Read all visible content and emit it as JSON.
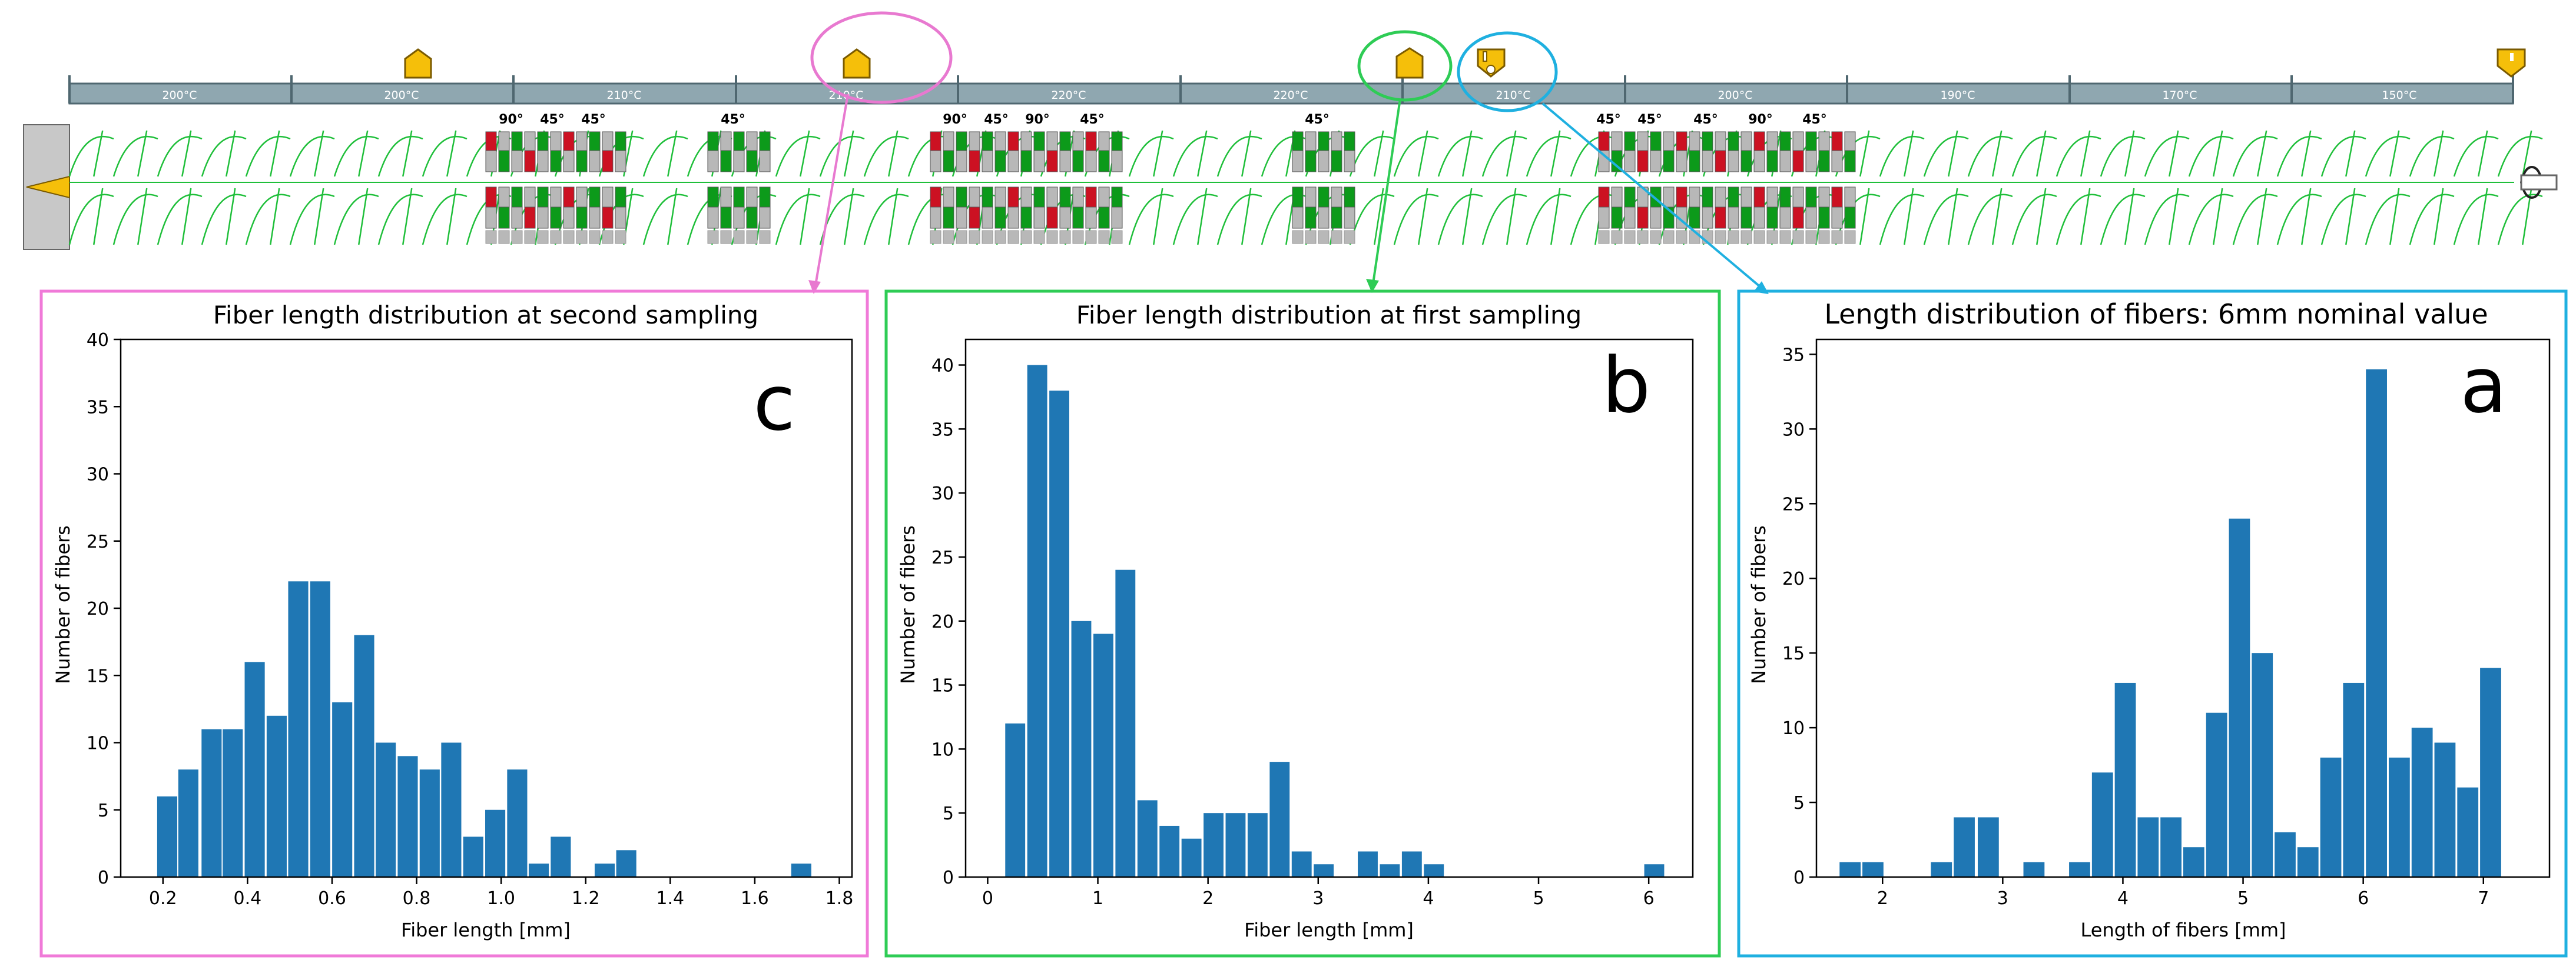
{
  "figure": {
    "barrel": {
      "zones": [
        "200°C",
        "200°C",
        "210°C",
        "210°C",
        "220°C",
        "220°C",
        "210°C",
        "200°C",
        "190°C",
        "170°C",
        "150°C"
      ],
      "kneading_blocks": [
        {
          "angles": [
            "90°",
            "45°",
            "45°"
          ]
        },
        {
          "angles": [
            "45°"
          ]
        },
        {
          "angles": [
            "90°",
            "45°",
            "90°",
            "45°"
          ]
        },
        {
          "angles": [
            "45°"
          ]
        },
        {
          "angles": [
            "45°",
            "45°",
            "45°",
            "90°",
            "45°"
          ]
        }
      ],
      "sampling_markers": [
        {
          "name": "second-sampling-port",
          "color": "#e879d0"
        },
        {
          "name": "first-sampling-port",
          "color": "#2ecc55"
        },
        {
          "name": "fiber-feed-port",
          "color": "#1fb0e0"
        }
      ]
    },
    "colors": {
      "bar": "#1f77b4",
      "screw_line": "#1fbf3a",
      "kneading_red": "#cc1122",
      "kneading_green": "#0c9a1a",
      "kneading_grey": "#b8b8b8",
      "zone_bar": "#8fa7b0",
      "marker_fill": "#f5bf0a"
    }
  },
  "chart_data": [
    {
      "panel_letter": "c",
      "type": "bar",
      "title": "Fiber length distribution at second sampling",
      "xlabel": "Fiber length [mm]",
      "ylabel": "Number of fibers",
      "frame_color": "#f07ad8",
      "xlim": [
        0.1,
        1.83
      ],
      "ylim": [
        0,
        40
      ],
      "xticks": [
        0.2,
        0.4,
        0.6,
        0.8,
        1.0,
        1.2,
        1.4,
        1.6,
        1.8
      ],
      "xtick_labels": [
        "0.2",
        "0.4",
        "0.6",
        "0.8",
        "1.0",
        "1.2",
        "1.4",
        "1.6",
        "1.8"
      ],
      "yticks": [
        0,
        5,
        10,
        15,
        20,
        25,
        30,
        35,
        40
      ],
      "bin_width": 0.0517,
      "x": [
        0.21,
        0.26,
        0.315,
        0.365,
        0.417,
        0.469,
        0.52,
        0.572,
        0.624,
        0.676,
        0.727,
        0.779,
        0.831,
        0.882,
        0.934,
        0.986,
        1.038,
        1.089,
        1.141,
        1.193,
        1.245,
        1.296,
        1.348,
        1.4,
        1.452,
        1.503,
        1.555,
        1.607,
        1.659,
        1.71
      ],
      "values": [
        6,
        8,
        11,
        11,
        16,
        12,
        22,
        22,
        13,
        18,
        10,
        9,
        8,
        10,
        3,
        5,
        8,
        1,
        3,
        0,
        1,
        2,
        0,
        0,
        0,
        0,
        0,
        0,
        0,
        1
      ]
    },
    {
      "panel_letter": "b",
      "type": "bar",
      "title": "Fiber length distribution at first sampling",
      "xlabel": "Fiber length [mm]",
      "ylabel": "Number of fibers",
      "frame_color": "#2ecc55",
      "xlim": [
        -0.2,
        6.4
      ],
      "ylim": [
        0,
        42
      ],
      "xticks": [
        0,
        1,
        2,
        3,
        4,
        5,
        6
      ],
      "xtick_labels": [
        "0",
        "1",
        "2",
        "3",
        "4",
        "5",
        "6"
      ],
      "yticks": [
        0,
        5,
        10,
        15,
        20,
        25,
        30,
        35,
        40
      ],
      "bin_width": 0.197,
      "x": [
        0.25,
        0.45,
        0.65,
        0.85,
        1.05,
        1.25,
        1.45,
        1.65,
        1.85,
        2.05,
        2.25,
        2.45,
        2.65,
        2.85,
        3.05,
        3.25,
        3.45,
        3.65,
        3.85,
        4.05,
        4.25,
        4.45,
        4.65,
        4.85,
        5.05,
        5.25,
        5.45,
        5.65,
        5.85,
        6.05
      ],
      "values": [
        12,
        40,
        38,
        20,
        19,
        24,
        6,
        4,
        3,
        5,
        5,
        5,
        9,
        2,
        1,
        0,
        2,
        1,
        2,
        1,
        0,
        0,
        0,
        0,
        0,
        0,
        0,
        0,
        0,
        1
      ]
    },
    {
      "panel_letter": "a",
      "type": "bar",
      "title": "Length distribution of fibers: 6mm nominal value",
      "xlabel": "Length of fibers [mm]",
      "ylabel": "Number of fibers",
      "frame_color": "#1fb0e0",
      "xlim": [
        1.45,
        7.55
      ],
      "ylim": [
        0,
        36
      ],
      "xticks": [
        2,
        3,
        4,
        5,
        6,
        7
      ],
      "xtick_labels": [
        "2",
        "3",
        "4",
        "5",
        "6",
        "7"
      ],
      "yticks": [
        0,
        5,
        10,
        15,
        20,
        25,
        30,
        35
      ],
      "bin_width": 0.19,
      "x": [
        1.73,
        1.92,
        2.11,
        2.3,
        2.49,
        2.68,
        2.88,
        3.07,
        3.26,
        3.45,
        3.64,
        3.83,
        4.02,
        4.21,
        4.4,
        4.59,
        4.78,
        4.97,
        5.16,
        5.35,
        5.54,
        5.73,
        5.92,
        6.11,
        6.3,
        6.49,
        6.68,
        6.87,
        7.06,
        7.25
      ],
      "values": [
        1,
        1,
        0,
        0,
        1,
        4,
        4,
        0,
        1,
        0,
        1,
        7,
        13,
        4,
        4,
        2,
        11,
        24,
        15,
        3,
        2,
        8,
        13,
        34,
        8,
        10,
        9,
        6,
        14,
        0
      ]
    }
  ]
}
